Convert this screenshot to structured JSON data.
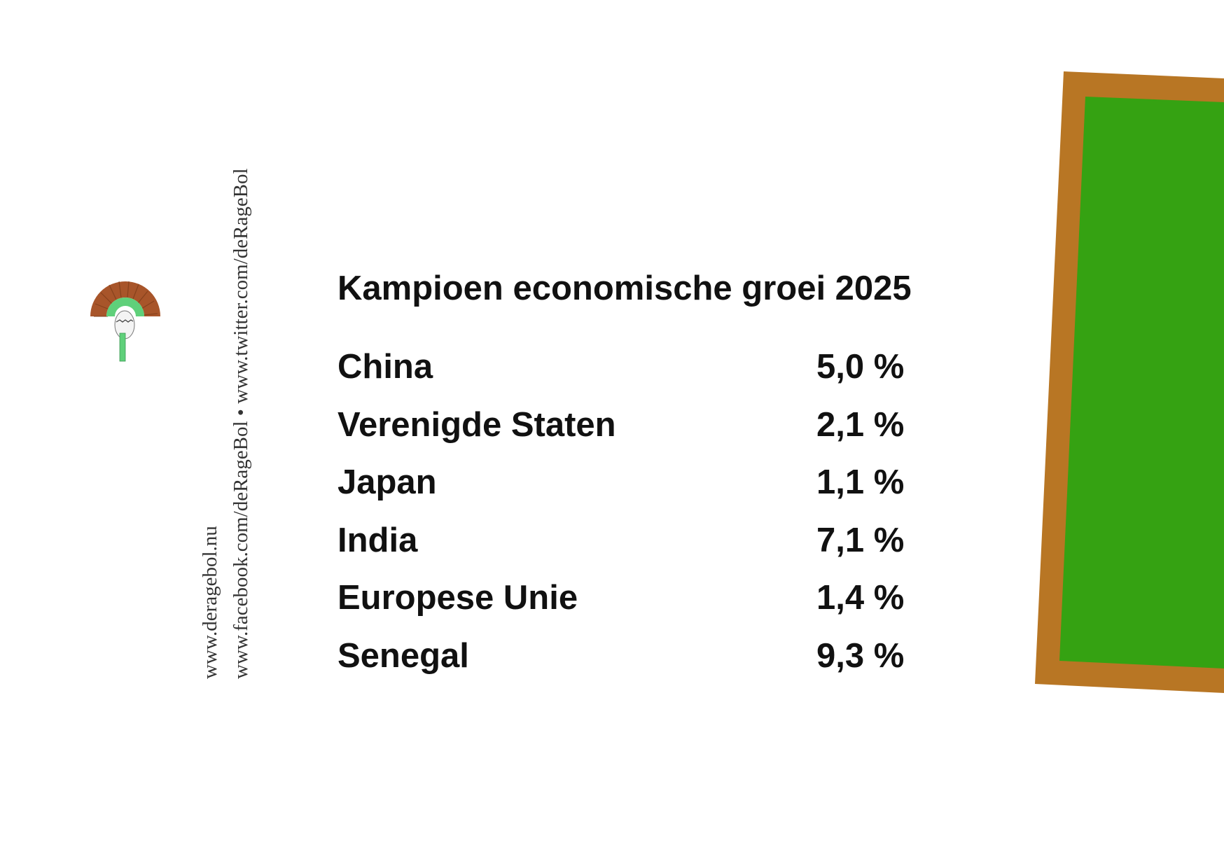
{
  "sidebar": {
    "url_line_1": "www.deragebol.nu",
    "url_line_2": "www.facebook.com/deRageBol • www.twitter.com/deRageBol",
    "logo_icon": "toilet-brush-icon"
  },
  "main": {
    "title": "Kampioen economische groei 2025",
    "rows": [
      {
        "country": "China",
        "value": "5,0 %"
      },
      {
        "country": "Verenigde Staten",
        "value": "2,1 %"
      },
      {
        "country": "Japan",
        "value": "1,1 %"
      },
      {
        "country": "India",
        "value": "7,1 %"
      },
      {
        "country": "Europese Unie",
        "value": "1,4 %"
      },
      {
        "country": "Senegal",
        "value": "9,3 %"
      }
    ]
  },
  "colors": {
    "board_frame": "#b87624",
    "board_surface": "#35a212",
    "brush_bristles": "#a8552a",
    "brush_green": "#5fd07a"
  }
}
